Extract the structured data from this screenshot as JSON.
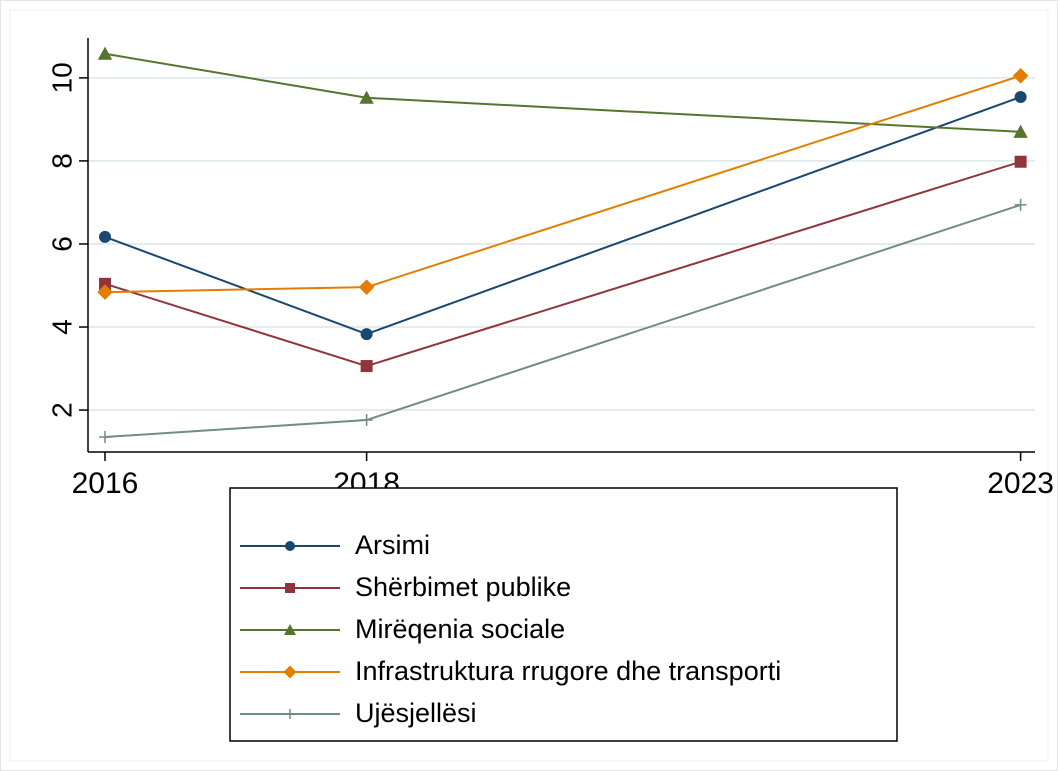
{
  "chart_data": {
    "type": "line",
    "x": [
      2016,
      2018,
      2023
    ],
    "xlim": [
      2015.87,
      2023.11
    ],
    "xticks": [
      2016,
      2018,
      2023
    ],
    "ylim": [
      0.99,
      10.96
    ],
    "yticks": [
      2,
      4,
      6,
      8,
      10
    ],
    "grid": true,
    "legend": "bottom",
    "series": [
      {
        "name": "Arsimi",
        "color": "#1a476f",
        "marker": "circle",
        "values": [
          6.17,
          3.83,
          9.54
        ]
      },
      {
        "name": "Shërbimet publike",
        "color": "#90353b",
        "marker": "square",
        "values": [
          5.04,
          3.06,
          7.98
        ]
      },
      {
        "name": "Mirëqenia sociale",
        "color": "#55752f",
        "marker": "triangle",
        "values": [
          10.58,
          9.52,
          8.7
        ]
      },
      {
        "name": "Infrastruktura rrugore dhe transporti",
        "color": "#e37e00",
        "marker": "diamond",
        "values": [
          4.84,
          4.96,
          10.05
        ]
      },
      {
        "name": "Ujësjellësi",
        "color": "#6e8e84",
        "marker": "plus",
        "values": [
          1.35,
          1.76,
          6.94
        ]
      }
    ]
  }
}
